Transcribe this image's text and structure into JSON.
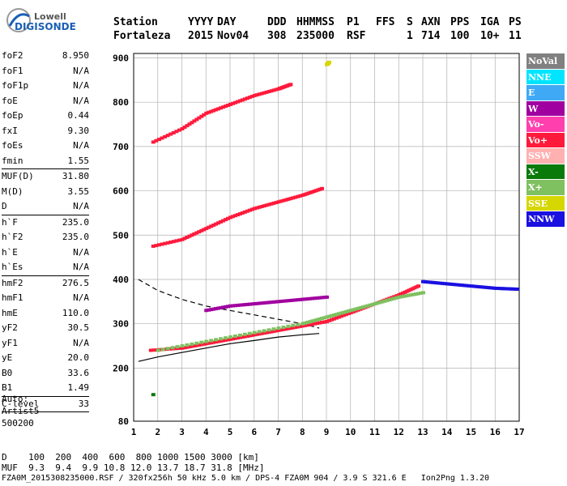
{
  "logo": {
    "line1": "Lowell",
    "line2": "DIGISONDE"
  },
  "header": {
    "labels": [
      "Station",
      "YYYY",
      "DAY",
      "DDD",
      "HHMMSS",
      "P1",
      "FFS",
      "S",
      "AXN",
      "PPS",
      "IGA",
      "PS"
    ],
    "values": [
      "Fortaleza",
      "2015",
      "Nov04",
      "308",
      "235000",
      "RSF",
      "1",
      "714",
      "100",
      "10+",
      "11"
    ]
  },
  "params": [
    {
      "k": "foF2",
      "v": "8.950"
    },
    {
      "k": "foF1",
      "v": "N/A"
    },
    {
      "k": "foF1p",
      "v": "N/A"
    },
    {
      "k": "foE",
      "v": "N/A"
    },
    {
      "k": "foEp",
      "v": "0.44"
    },
    {
      "k": "fxI",
      "v": "9.30"
    },
    {
      "k": "foEs",
      "v": "N/A"
    },
    {
      "k": "fmin",
      "v": "1.55"
    },
    {
      "sep": true
    },
    {
      "k": "MUF(D)",
      "v": "31.80"
    },
    {
      "k": "M(D)",
      "v": "3.55"
    },
    {
      "k": "D",
      "v": "N/A"
    },
    {
      "sep": true
    },
    {
      "k": "h`F",
      "v": "235.0"
    },
    {
      "k": "h`F2",
      "v": "235.0"
    },
    {
      "k": "h`E",
      "v": "N/A"
    },
    {
      "k": "h`Es",
      "v": "N/A"
    },
    {
      "sep": true
    },
    {
      "k": "hmF2",
      "v": "276.5"
    },
    {
      "k": "hmF1",
      "v": "N/A"
    },
    {
      "k": "hmE",
      "v": "110.0"
    },
    {
      "k": "yF2",
      "v": "30.5"
    },
    {
      "k": "yF1",
      "v": "N/A"
    },
    {
      "k": "yE",
      "v": "20.0"
    },
    {
      "k": "B0",
      "v": "33.6"
    },
    {
      "k": "B1",
      "v": "1.49"
    },
    {
      "sep": true
    },
    {
      "k": "C-level",
      "v": "33"
    },
    {
      "sep": true
    }
  ],
  "auto": [
    "Auto:",
    "Artist5",
    "500200"
  ],
  "legend": [
    {
      "label": "NoVal",
      "color": "#808080"
    },
    {
      "label": "NNE",
      "color": "#00e5ff"
    },
    {
      "label": "E",
      "color": "#3fa9f5"
    },
    {
      "label": "W",
      "color": "#a0009f"
    },
    {
      "label": "Vo-",
      "color": "#ff3fae"
    },
    {
      "label": "Vo+",
      "color": "#ff1a3c"
    },
    {
      "label": "SSW",
      "color": "#ffb0b0"
    },
    {
      "label": "X-",
      "color": "#0a7a0a"
    },
    {
      "label": "X+",
      "color": "#7fc060"
    },
    {
      "label": "SSE",
      "color": "#d6d600"
    },
    {
      "label": "NNW",
      "color": "#1a10e0"
    }
  ],
  "footer": {
    "d_row": "D    100  200  400  600  800 1000 1500 3000 [km]",
    "muf_row": "MUF  9.3  9.4  9.9 10.8 12.0 13.7 18.7 31.8 [MHz]",
    "file_row": "FZA0M_2015308235000.RSF / 320fx256h 50 kHz 5.0 km / DPS-4 FZA0M 904 / 3.9 S 321.6 E   Ion2Png 1.3.20"
  },
  "chart_data": {
    "type": "scatter",
    "x_ticks": [
      1,
      2,
      3,
      4,
      5,
      6,
      7,
      8,
      9,
      10,
      11,
      12,
      13,
      14,
      15,
      16,
      17
    ],
    "y_ticks": [
      80,
      200,
      300,
      400,
      500,
      600,
      700,
      800,
      900
    ],
    "xlim": [
      1,
      17
    ],
    "ylim": [
      80,
      910
    ],
    "grid": true,
    "series": [
      {
        "name": "Vo+",
        "color": "#ff1a3c",
        "traces": [
          {
            "x": [
              1.7,
              3,
              4,
              5,
              6,
              7,
              8,
              9,
              10,
              11,
              12,
              12.8
            ],
            "y": [
              240,
              245,
              255,
              265,
              275,
              285,
              295,
              305,
              325,
              345,
              365,
              385
            ]
          },
          {
            "x": [
              1.8,
              3,
              4,
              5,
              6,
              7,
              8,
              8.8
            ],
            "y": [
              475,
              490,
              515,
              540,
              560,
              575,
              590,
              605
            ]
          },
          {
            "x": [
              1.8,
              3,
              4,
              5,
              6,
              7,
              7.5
            ],
            "y": [
              710,
              740,
              775,
              795,
              815,
              830,
              840
            ]
          }
        ]
      },
      {
        "name": "X+",
        "color": "#7fc060",
        "traces": [
          {
            "x": [
              2,
              4,
              6,
              8,
              9,
              10,
              11,
              12,
              13
            ],
            "y": [
              240,
              260,
              280,
              300,
              315,
              330,
              345,
              360,
              370
            ]
          }
        ]
      },
      {
        "name": "W",
        "color": "#a0009f",
        "traces": [
          {
            "x": [
              4,
              5,
              6,
              7,
              8,
              9
            ],
            "y": [
              330,
              340,
              345,
              350,
              355,
              360
            ]
          }
        ]
      },
      {
        "name": "NNW",
        "color": "#1a10e0",
        "traces": [
          {
            "x": [
              13,
              14,
              15,
              16,
              16.9
            ],
            "y": [
              395,
              390,
              385,
              380,
              378
            ]
          }
        ]
      },
      {
        "name": "SSE",
        "color": "#d6d600",
        "traces": [
          {
            "x": [
              9,
              9.1
            ],
            "y": [
              885,
              890
            ]
          }
        ]
      },
      {
        "name": "X-",
        "color": "#0a7a0a",
        "traces": [
          {
            "x": [
              1.8
            ],
            "y": [
              140
            ]
          }
        ]
      }
    ],
    "model_curves": [
      {
        "style": "dashed",
        "x": [
          1.2,
          2,
          3,
          4,
          5,
          6,
          7,
          8,
          8.7
        ],
        "y": [
          400,
          375,
          355,
          340,
          330,
          320,
          310,
          300,
          290
        ]
      },
      {
        "style": "solid",
        "x": [
          1.2,
          2,
          3,
          4,
          5,
          6,
          7,
          8,
          8.7
        ],
        "y": [
          215,
          225,
          235,
          245,
          255,
          262,
          270,
          275,
          278
        ]
      }
    ]
  }
}
